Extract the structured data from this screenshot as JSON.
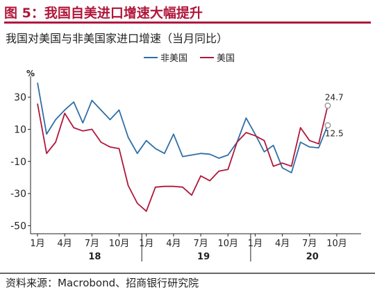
{
  "figure": {
    "title": "图 5：我国自美进口增速大幅提升",
    "source": "资料来源：Macrobond、招商银行研究院"
  },
  "chart_data": {
    "type": "line",
    "title": "我国对美国与非美国家进口增速（当月同比）",
    "ylabel": "%",
    "xlabel": "",
    "ylim": [
      -55,
      43
    ],
    "yticks": [
      30,
      10,
      -10,
      -30,
      -50
    ],
    "grid": false,
    "legend_position": "top-center",
    "x_month_ticks": [
      {
        "index": 0,
        "label": "1月"
      },
      {
        "index": 3,
        "label": "4月"
      },
      {
        "index": 6,
        "label": "7月"
      },
      {
        "index": 9,
        "label": "10月"
      },
      {
        "index": 12,
        "label": "1月"
      },
      {
        "index": 15,
        "label": "4月"
      },
      {
        "index": 18,
        "label": "7月"
      },
      {
        "index": 21,
        "label": "10月"
      },
      {
        "index": 24,
        "label": "1月"
      },
      {
        "index": 27,
        "label": "4月"
      },
      {
        "index": 30,
        "label": "7月"
      },
      {
        "index": 33,
        "label": "10月"
      }
    ],
    "x_year_labels": [
      {
        "index": 6,
        "label": "18"
      },
      {
        "index": 18,
        "label": "19"
      },
      {
        "index": 30,
        "label": "20"
      }
    ],
    "series": [
      {
        "name": "非美国",
        "color": "#2e6ea6",
        "values": [
          39,
          7,
          16,
          22,
          27,
          14,
          28,
          22,
          16,
          22,
          5,
          -5,
          3,
          -2,
          -5,
          7,
          -7,
          -6,
          -5,
          -5.5,
          -8,
          -6,
          2,
          17,
          7,
          -4,
          0,
          -14,
          -17,
          2,
          -1,
          -1.5,
          12.5
        ],
        "end_label": "12.5"
      },
      {
        "name": "美国",
        "color": "#b0163a",
        "values": [
          26,
          -5,
          2,
          20,
          11,
          9,
          10,
          2,
          -1,
          -2,
          -25,
          -36,
          -41,
          -26,
          -25.5,
          -25.5,
          -26,
          -31,
          -19,
          -22,
          -16,
          -15,
          2,
          8,
          6,
          3,
          -13,
          -11,
          -13,
          11,
          3,
          1,
          24.7
        ],
        "end_label": "24.7"
      }
    ]
  }
}
